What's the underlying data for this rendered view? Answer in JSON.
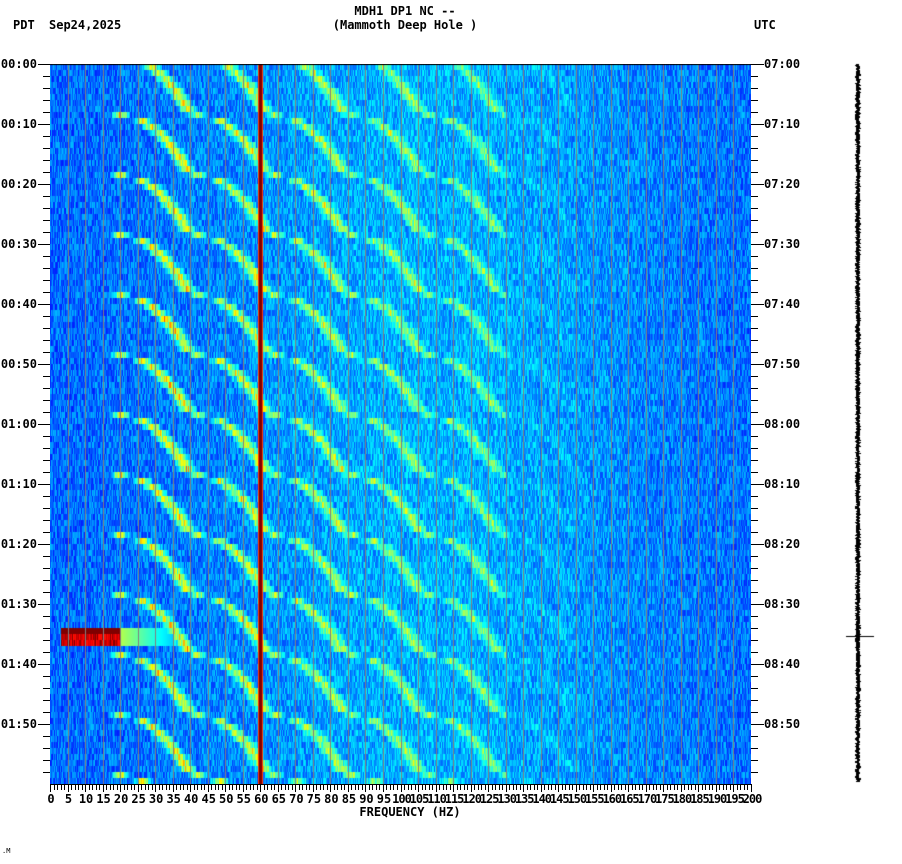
{
  "header": {
    "title_line1": "MDH1 DP1 NC --",
    "title_line2": "(Mammoth Deep Hole )",
    "left_timezone": "PDT",
    "date": "Sep24,2025",
    "right_timezone": "UTC"
  },
  "footer": {
    "mark": ".M"
  },
  "colors": {
    "background_blue": "#1e90ff",
    "grid": "#808080",
    "line60": "#800000",
    "event": "#8b0000",
    "axis": "#000000"
  },
  "chart_data": {
    "type": "heatmap",
    "title": "MDH1 DP1 NC -- (Mammoth Deep Hole )",
    "subtitle": "Sep24,2025",
    "xlabel": "FREQUENCY (HZ)",
    "ylabel_left": "PDT",
    "ylabel_right": "UTC",
    "xlim": [
      0,
      200
    ],
    "ylim_minutes": [
      0,
      120
    ],
    "x_ticks": [
      0,
      5,
      10,
      15,
      20,
      25,
      30,
      35,
      40,
      45,
      50,
      55,
      60,
      65,
      70,
      75,
      80,
      85,
      90,
      95,
      100,
      105,
      110,
      115,
      120,
      125,
      130,
      135,
      140,
      145,
      150,
      155,
      160,
      165,
      170,
      175,
      180,
      185,
      190,
      195,
      200
    ],
    "x_tick_labels": [
      "0",
      "5",
      "10",
      "15",
      "20",
      "25",
      "30",
      "35",
      "40",
      "45",
      "50",
      "55",
      "60",
      "65",
      "70",
      "75",
      "80",
      "85",
      "90",
      "95",
      "100",
      "105",
      "110",
      "115",
      "120",
      "125",
      "130",
      "135",
      "140",
      "145",
      "150",
      "155",
      "160",
      "165",
      "170",
      "175",
      "180",
      "185",
      "190",
      "195",
      "200"
    ],
    "x_minor_tick_step": 1,
    "y_ticks_left": [
      "00:00",
      "00:10",
      "00:20",
      "00:30",
      "00:40",
      "00:50",
      "01:00",
      "01:10",
      "01:20",
      "01:30",
      "01:40",
      "01:50"
    ],
    "y_ticks_right": [
      "07:00",
      "07:10",
      "07:20",
      "07:30",
      "07:40",
      "07:50",
      "08:00",
      "08:10",
      "08:20",
      "08:30",
      "08:40",
      "08:50"
    ],
    "y_minor_tick_step_minutes": 2,
    "grid": "vertical lines every 5 Hz",
    "colormap": "jet (blue low, red high)",
    "features": {
      "persistent_line_hz": 60,
      "event": {
        "time_left": "01:35",
        "time_right": "08:35",
        "freq_range_hz": [
          3,
          20
        ],
        "intensity": "high (dark red)"
      },
      "arcs": {
        "description": "Recurring curved harmonic arcs sweeping up in frequency over ~10-minute periods",
        "period_minutes": 10,
        "harmonic_count": 6,
        "max_visible_freq_hz": 130
      }
    },
    "seismogram": {
      "spike_time_left": "01:35",
      "spike_time_right": "08:35"
    }
  }
}
